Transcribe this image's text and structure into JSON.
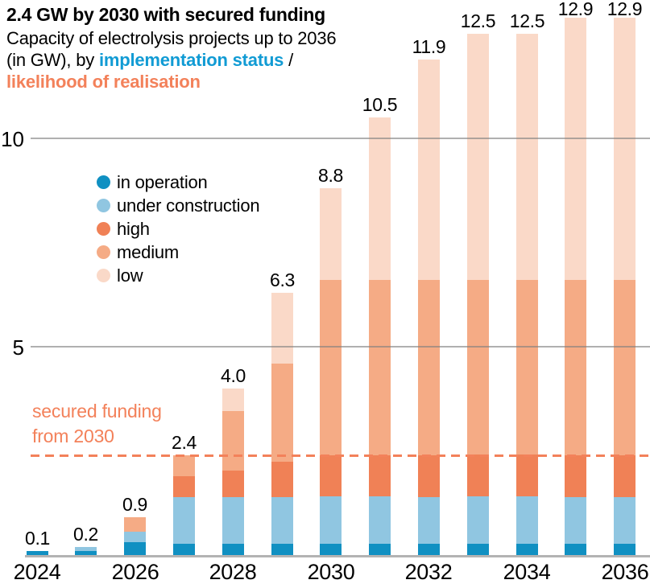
{
  "header": {
    "title": "2.4 GW by 2030 with secured funding",
    "subtitle_line1": "Capacity of electrolysis projects up to 2036",
    "subtitle_line2_pre": "(in GW), by ",
    "subtitle_blue": "implementation status",
    "subtitle_line2_post": " /",
    "subtitle_orange": "likelihood of realisation"
  },
  "colors": {
    "in_operation": "#1090c2",
    "under_construction": "#90c6e1",
    "high": "#f08156",
    "medium": "#f5ab85",
    "low": "#fad9c8",
    "accent_blue_text": "#119bd4",
    "accent_orange_text": "#f3815a",
    "gridline": "#a8a8a8",
    "axis": "#b3b3b3"
  },
  "legend": {
    "items": [
      {
        "label": "in operation",
        "color": "#1090c2"
      },
      {
        "label": "under construction",
        "color": "#90c6e1"
      },
      {
        "label": "high",
        "color": "#f08156"
      },
      {
        "label": "medium",
        "color": "#f5ab85"
      },
      {
        "label": "low",
        "color": "#fad9c8"
      }
    ]
  },
  "annotation": {
    "line1": "secured funding",
    "line2": "from 2030",
    "value": 2.4
  },
  "chart_data": {
    "type": "bar",
    "stacked": true,
    "title": "2.4 GW by 2030 with secured funding",
    "unit": "GW",
    "x": [
      2024,
      2025,
      2026,
      2027,
      2028,
      2029,
      2030,
      2031,
      2032,
      2033,
      2034,
      2035,
      2036
    ],
    "series": [
      {
        "name": "in operation",
        "color": "#1090c2",
        "values": [
          0.1,
          0.1,
          0.3,
          0.27,
          0.27,
          0.27,
          0.27,
          0.27,
          0.27,
          0.27,
          0.27,
          0.27,
          0.27
        ]
      },
      {
        "name": "under construction",
        "color": "#90c6e1",
        "values": [
          0,
          0.1,
          0.25,
          1.13,
          1.13,
          1.13,
          1.13,
          1.13,
          1.13,
          1.13,
          1.13,
          1.13,
          1.13
        ]
      },
      {
        "name": "high",
        "color": "#f08156",
        "values": [
          0,
          0,
          0,
          0.5,
          0.63,
          0.84,
          1.0,
          1.0,
          1.0,
          1.0,
          1.0,
          1.0,
          1.0
        ]
      },
      {
        "name": "medium",
        "color": "#f5ab85",
        "values": [
          0,
          0,
          0.35,
          0.5,
          1.42,
          2.36,
          4.2,
          4.2,
          4.2,
          4.2,
          4.2,
          4.2,
          4.2
        ]
      },
      {
        "name": "low",
        "color": "#fad9c8",
        "values": [
          0,
          0,
          0,
          0,
          0.55,
          1.7,
          2.2,
          3.9,
          5.3,
          5.9,
          5.9,
          6.3,
          6.3
        ]
      }
    ],
    "totals": [
      "0.1",
      "0.2",
      "0.9",
      "2.4",
      "4.0",
      "6.3",
      "8.8",
      "10.5",
      "11.9",
      "12.5",
      "12.5",
      "12.9",
      "12.9"
    ],
    "yticks": [
      5,
      10
    ],
    "xticks": [
      2024,
      2026,
      2028,
      2030,
      2032,
      2034,
      2036
    ],
    "ylim": [
      0,
      13.3
    ],
    "grid": "horizontal",
    "legend_position": "upper-left-inside",
    "reference_line": {
      "value": 2.4,
      "label": "secured funding from 2030",
      "style": "dashed",
      "color": "#f3815a"
    }
  }
}
